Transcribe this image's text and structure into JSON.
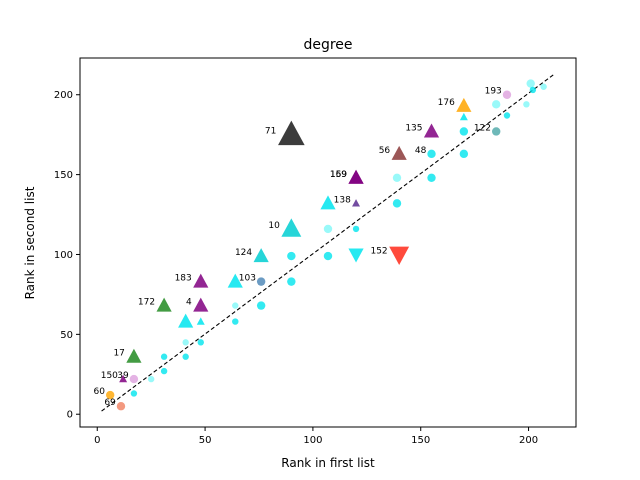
{
  "chart_data": {
    "type": "scatter",
    "title": "degree",
    "xlabel": "Rank in first list",
    "ylabel": "Rank in second list",
    "xlim": [
      -8,
      222
    ],
    "ylim": [
      -8,
      223
    ],
    "xticks": [
      0,
      50,
      100,
      150,
      200
    ],
    "yticks": [
      0,
      50,
      100,
      150,
      200
    ],
    "grid": false,
    "reference_line": {
      "style": "dashed",
      "color": "#000000",
      "from": [
        2,
        2
      ],
      "to": [
        212,
        213
      ]
    },
    "colors": {
      "cyan": "#00e5ee",
      "light_cyan": "#7ff7f7",
      "dark_gray": "#1a1a1a",
      "purple": "#800080",
      "dark_purple": "#5a2d91",
      "green": "#228b22",
      "orange": "#ffa500",
      "brown": "#8b3a3a",
      "red": "#ff2a1a",
      "turquoise": "#00ced1",
      "teal_gray": "#4aa6a6",
      "steel": "#4682b4",
      "salmon": "#f08060",
      "pink": "#dda0dd"
    },
    "points": [
      {
        "x": 90,
        "y": 175,
        "marker": "triangle-up",
        "size": "xl",
        "color": "dark_gray",
        "label": "71"
      },
      {
        "x": 120,
        "y": 148,
        "marker": "triangle-up",
        "size": "m",
        "color": "purple",
        "label": "159"
      },
      {
        "x": 120,
        "y": 148,
        "marker": "triangle-up",
        "size": "m",
        "color": "purple",
        "label": "169"
      },
      {
        "x": 140,
        "y": 100,
        "marker": "triangle-down",
        "size": "l",
        "color": "red",
        "label": "152"
      },
      {
        "x": 140,
        "y": 163,
        "marker": "triangle-up",
        "size": "m",
        "color": "brown",
        "label": "56"
      },
      {
        "x": 155,
        "y": 177,
        "marker": "triangle-up",
        "size": "m",
        "color": "purple",
        "label": "135"
      },
      {
        "x": 170,
        "y": 193,
        "marker": "triangle-up",
        "size": "m",
        "color": "orange",
        "label": "176"
      },
      {
        "x": 190,
        "y": 200,
        "marker": "circle",
        "size": "s",
        "color": "pink",
        "label": "193"
      },
      {
        "x": 185,
        "y": 177,
        "marker": "circle",
        "size": "s",
        "color": "teal_gray",
        "label": "122"
      },
      {
        "x": 155,
        "y": 163,
        "marker": "circle",
        "size": "s",
        "color": "cyan",
        "label": "48"
      },
      {
        "x": 120,
        "y": 132,
        "marker": "triangle-up",
        "size": "s",
        "color": "dark_purple",
        "label": "138"
      },
      {
        "x": 90,
        "y": 116,
        "marker": "triangle-up",
        "size": "l",
        "color": "turquoise",
        "label": "10"
      },
      {
        "x": 76,
        "y": 99,
        "marker": "triangle-up",
        "size": "m",
        "color": "turquoise",
        "label": "124"
      },
      {
        "x": 76,
        "y": 83,
        "marker": "circle",
        "size": "s",
        "color": "steel",
        "label": "103"
      },
      {
        "x": 48,
        "y": 83,
        "marker": "triangle-up",
        "size": "m",
        "color": "purple",
        "label": "183"
      },
      {
        "x": 48,
        "y": 68,
        "marker": "triangle-up",
        "size": "m",
        "color": "purple",
        "label": "4"
      },
      {
        "x": 31,
        "y": 68,
        "marker": "triangle-up",
        "size": "m",
        "color": "green",
        "label": "172"
      },
      {
        "x": 17,
        "y": 36,
        "marker": "triangle-up",
        "size": "m",
        "color": "green",
        "label": "17"
      },
      {
        "x": 12,
        "y": 22,
        "marker": "triangle-up",
        "size": "s",
        "color": "purple",
        "label": "150"
      },
      {
        "x": 17,
        "y": 22,
        "marker": "circle",
        "size": "s",
        "color": "pink",
        "label": "39"
      },
      {
        "x": 6,
        "y": 12,
        "marker": "circle",
        "size": "s",
        "color": "orange",
        "label": "60"
      },
      {
        "x": 11,
        "y": 5,
        "marker": "circle",
        "size": "s",
        "color": "salmon",
        "label": "69"
      },
      {
        "x": 120,
        "y": 100,
        "marker": "triangle-down",
        "size": "m",
        "color": "cyan",
        "label": ""
      },
      {
        "x": 107,
        "y": 132,
        "marker": "triangle-up",
        "size": "m",
        "color": "cyan",
        "label": ""
      },
      {
        "x": 64,
        "y": 83,
        "marker": "triangle-up",
        "size": "m",
        "color": "cyan",
        "label": ""
      },
      {
        "x": 41,
        "y": 58,
        "marker": "triangle-up",
        "size": "m",
        "color": "cyan",
        "label": ""
      },
      {
        "x": 48,
        "y": 58,
        "marker": "triangle-up",
        "size": "s",
        "color": "cyan",
        "label": ""
      },
      {
        "x": 170,
        "y": 186,
        "marker": "triangle-up",
        "size": "s",
        "color": "cyan",
        "label": ""
      },
      {
        "x": 107,
        "y": 116,
        "marker": "circle",
        "size": "s",
        "color": "light_cyan",
        "label": ""
      },
      {
        "x": 107,
        "y": 99,
        "marker": "circle",
        "size": "s",
        "color": "cyan",
        "label": ""
      },
      {
        "x": 90,
        "y": 99,
        "marker": "circle",
        "size": "s",
        "color": "cyan",
        "label": ""
      },
      {
        "x": 90,
        "y": 83,
        "marker": "circle",
        "size": "s",
        "color": "cyan",
        "label": ""
      },
      {
        "x": 76,
        "y": 68,
        "marker": "circle",
        "size": "s",
        "color": "cyan",
        "label": ""
      },
      {
        "x": 64,
        "y": 58,
        "marker": "circle",
        "size": "xs",
        "color": "cyan",
        "label": ""
      },
      {
        "x": 64,
        "y": 68,
        "marker": "circle",
        "size": "xs",
        "color": "light_cyan",
        "label": ""
      },
      {
        "x": 48,
        "y": 45,
        "marker": "circle",
        "size": "xs",
        "color": "cyan",
        "label": ""
      },
      {
        "x": 41,
        "y": 36,
        "marker": "circle",
        "size": "xs",
        "color": "cyan",
        "label": ""
      },
      {
        "x": 41,
        "y": 45,
        "marker": "circle",
        "size": "xs",
        "color": "light_cyan",
        "label": ""
      },
      {
        "x": 31,
        "y": 36,
        "marker": "circle",
        "size": "xs",
        "color": "cyan",
        "label": ""
      },
      {
        "x": 31,
        "y": 27,
        "marker": "circle",
        "size": "xs",
        "color": "cyan",
        "label": ""
      },
      {
        "x": 25,
        "y": 22,
        "marker": "circle",
        "size": "xs",
        "color": "light_cyan",
        "label": ""
      },
      {
        "x": 17,
        "y": 13,
        "marker": "circle",
        "size": "xs",
        "color": "cyan",
        "label": ""
      },
      {
        "x": 120,
        "y": 116,
        "marker": "circle",
        "size": "xs",
        "color": "cyan",
        "label": ""
      },
      {
        "x": 139,
        "y": 132,
        "marker": "circle",
        "size": "s",
        "color": "cyan",
        "label": ""
      },
      {
        "x": 139,
        "y": 148,
        "marker": "circle",
        "size": "s",
        "color": "light_cyan",
        "label": ""
      },
      {
        "x": 155,
        "y": 148,
        "marker": "circle",
        "size": "s",
        "color": "cyan",
        "label": ""
      },
      {
        "x": 170,
        "y": 163,
        "marker": "circle",
        "size": "s",
        "color": "cyan",
        "label": ""
      },
      {
        "x": 170,
        "y": 177,
        "marker": "circle",
        "size": "s",
        "color": "cyan",
        "label": ""
      },
      {
        "x": 185,
        "y": 194,
        "marker": "circle",
        "size": "s",
        "color": "light_cyan",
        "label": ""
      },
      {
        "x": 190,
        "y": 187,
        "marker": "circle",
        "size": "xs",
        "color": "cyan",
        "label": ""
      },
      {
        "x": 199,
        "y": 194,
        "marker": "circle",
        "size": "xs",
        "color": "light_cyan",
        "label": ""
      },
      {
        "x": 201,
        "y": 207,
        "marker": "circle",
        "size": "s",
        "color": "light_cyan",
        "label": ""
      },
      {
        "x": 207,
        "y": 205,
        "marker": "circle",
        "size": "xs",
        "color": "light_cyan",
        "label": ""
      },
      {
        "x": 202,
        "y": 203,
        "marker": "circle",
        "size": "xs",
        "color": "cyan",
        "label": ""
      }
    ]
  }
}
